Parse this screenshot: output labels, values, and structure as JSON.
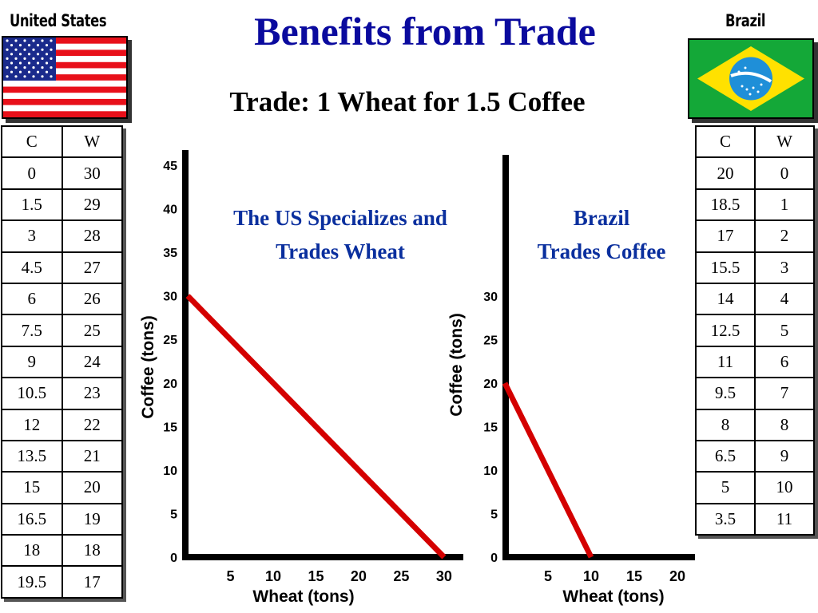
{
  "title": "Benefits from Trade",
  "subtitle": "Trade: 1 Wheat for 1.5 Coffee",
  "us": {
    "label": "United States",
    "flag_colors": {
      "red": "#e8101a",
      "white": "#ffffff",
      "blue": "#1a2a8c"
    },
    "table": {
      "headers": [
        "C",
        "W"
      ],
      "rows": [
        [
          "0",
          "30"
        ],
        [
          "1.5",
          "29"
        ],
        [
          "3",
          "28"
        ],
        [
          "4.5",
          "27"
        ],
        [
          "6",
          "26"
        ],
        [
          "7.5",
          "25"
        ],
        [
          "9",
          "24"
        ],
        [
          "10.5",
          "23"
        ],
        [
          "12",
          "22"
        ],
        [
          "13.5",
          "21"
        ],
        [
          "15",
          "20"
        ],
        [
          "16.5",
          "19"
        ],
        [
          "18",
          "18"
        ],
        [
          "19.5",
          "17"
        ]
      ]
    }
  },
  "brazil": {
    "label": "Brazil",
    "flag_colors": {
      "green": "#14a838",
      "yellow": "#ffe100",
      "blue": "#1f8fd8"
    },
    "table": {
      "headers": [
        "C",
        "W"
      ],
      "rows": [
        [
          "20",
          "0"
        ],
        [
          "18.5",
          "1"
        ],
        [
          "17",
          "2"
        ],
        [
          "15.5",
          "3"
        ],
        [
          "14",
          "4"
        ],
        [
          "12.5",
          "5"
        ],
        [
          "11",
          "6"
        ],
        [
          "9.5",
          "7"
        ],
        [
          "8",
          "8"
        ],
        [
          "6.5",
          "9"
        ],
        [
          "5",
          "10"
        ],
        [
          "3.5",
          "11"
        ]
      ]
    }
  },
  "annotations": {
    "us_line1": "The US Specializes and",
    "us_line2": "Trades Wheat",
    "br_line1": "Brazil",
    "br_line2": "Trades Coffee"
  },
  "chart_data": [
    {
      "type": "line",
      "xlabel": "Wheat (tons)",
      "ylabel": "Coffee (tons)",
      "xlim": [
        0,
        33
      ],
      "ylim": [
        0,
        45
      ],
      "xticks": [
        5,
        10,
        15,
        20,
        25,
        30
      ],
      "yticks": [
        0,
        5,
        10,
        15,
        20,
        25,
        30,
        35,
        40,
        45
      ],
      "series": [
        {
          "x": [
            0,
            30
          ],
          "y": [
            30,
            0
          ],
          "color": "#d40000"
        }
      ]
    },
    {
      "type": "line",
      "xlabel": "Wheat (tons)",
      "ylabel": "Coffee (tons)",
      "xlim": [
        0,
        25
      ],
      "ylim": [
        0,
        30
      ],
      "xticks": [
        5,
        10,
        15,
        20
      ],
      "yticks": [
        0,
        5,
        10,
        15,
        20,
        25,
        30
      ],
      "series": [
        {
          "x": [
            0,
            10
          ],
          "y": [
            20,
            0
          ],
          "color": "#d40000"
        }
      ]
    }
  ]
}
